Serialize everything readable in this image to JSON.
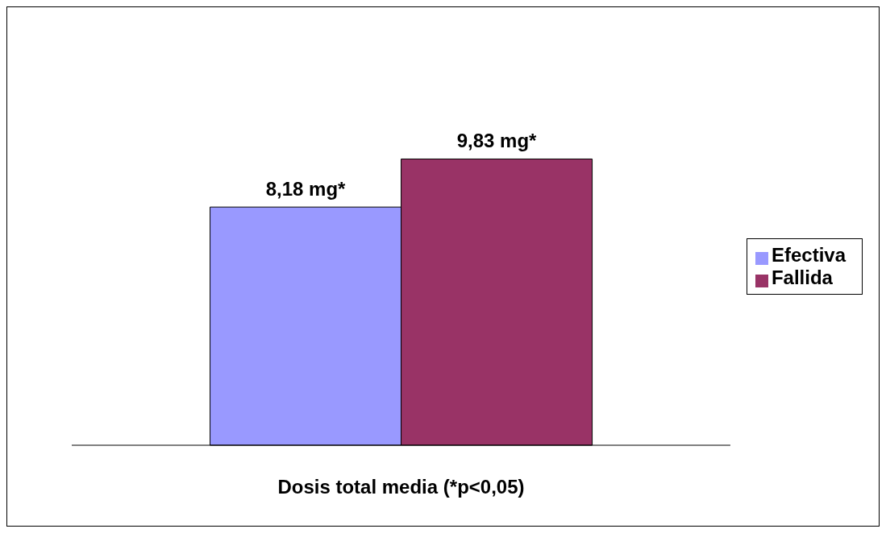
{
  "chart_data": {
    "type": "bar",
    "categories": [
      null
    ],
    "xlabel": "Dosis total media (*p<0,05)",
    "series": [
      {
        "name": "Efectiva",
        "color": "#9999ff",
        "values": [
          8.18
        ],
        "value_labels": [
          "8,18 mg*"
        ]
      },
      {
        "name": "Fallida",
        "color": "#993366",
        "values": [
          9.83
        ],
        "value_labels": [
          "9,83 mg*"
        ]
      }
    ],
    "legend": "right",
    "grid": false
  }
}
